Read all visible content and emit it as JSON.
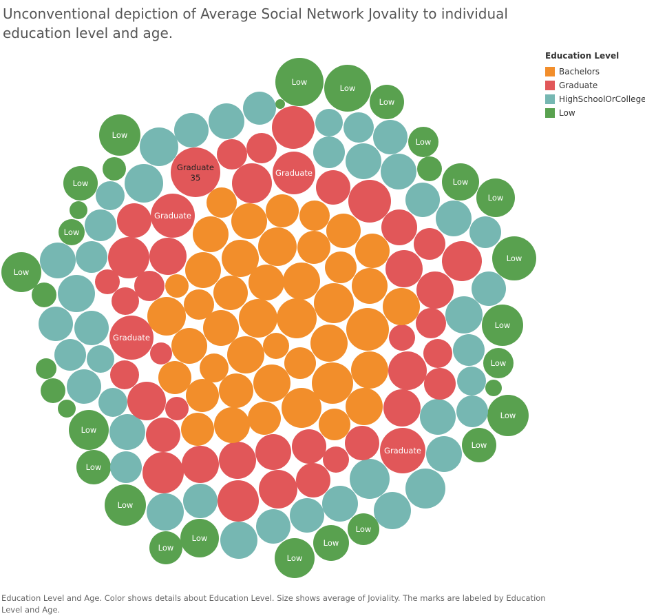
{
  "title": "Unconventional depiction of Average Social Network Jovality to individual education level and age.",
  "caption": "Education Level and Age.  Color shows details about Education Level.  Size shows average of Joviality.  The marks are labeled by Education Level and Age.",
  "legend": {
    "title": "Education Level",
    "items": [
      {
        "label": "Bachelors",
        "color": "#F28E2B"
      },
      {
        "label": "Graduate",
        "color": "#E15759"
      },
      {
        "label": "HighSchoolOrCollege",
        "color": "#76B7B2"
      },
      {
        "label": "Low",
        "color": "#59A14F"
      }
    ]
  },
  "chart_data": {
    "type": "packed-bubble",
    "title": "Unconventional depiction of Average Social Network Jovality to individual education level and age.",
    "size_measure": "Average of Joviality",
    "color_dimension": "Education Level",
    "label_dimensions": [
      "Education Level",
      "Age"
    ],
    "visible_labels": [
      {
        "education_level": "Graduate",
        "age": "35"
      }
    ],
    "categories": [
      "Bachelors",
      "Graduate",
      "HighSchoolOrCollege",
      "Low"
    ],
    "colors": {
      "Bachelors": "#F28E2B",
      "Graduate": "#E15759",
      "HighSchoolOrCollege": "#76B7B2",
      "Low": "#59A14F"
    }
  }
}
